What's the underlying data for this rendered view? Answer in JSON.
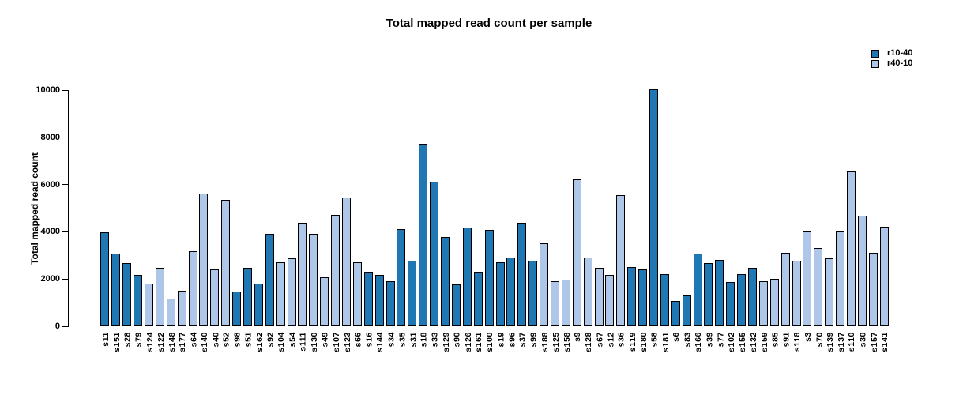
{
  "title": "Total mapped read count per sample",
  "y_axis": {
    "label": "Total mapped read count",
    "ticks": [
      0,
      2000,
      4000,
      6000,
      8000,
      10000
    ],
    "max": 10000
  },
  "legend": {
    "items": [
      {
        "label": "r10-40",
        "color": "#1F77B4"
      },
      {
        "label": "r40-10",
        "color": "#AEC7E8"
      }
    ],
    "position": "topright"
  },
  "chart_data": {
    "type": "bar",
    "title": "Total mapped read count per sample",
    "xlabel": "",
    "ylabel": "Total mapped read count",
    "ylim": [
      0,
      10000
    ],
    "grid": false,
    "legend_position": "topright",
    "groups": {
      "r10-40": "#1F77B4",
      "r40-10": "#AEC7E8"
    },
    "bars": [
      {
        "sample": "s11",
        "value": 3900,
        "group": "r10-40"
      },
      {
        "sample": "s151",
        "value": 3000,
        "group": "r10-40"
      },
      {
        "sample": "s28",
        "value": 2600,
        "group": "r10-40"
      },
      {
        "sample": "s79",
        "value": 2100,
        "group": "r10-40"
      },
      {
        "sample": "s124",
        "value": 1750,
        "group": "r40-10"
      },
      {
        "sample": "s122",
        "value": 2400,
        "group": "r40-10"
      },
      {
        "sample": "s148",
        "value": 1100,
        "group": "r40-10"
      },
      {
        "sample": "s177",
        "value": 1450,
        "group": "r40-10"
      },
      {
        "sample": "s64",
        "value": 3100,
        "group": "r40-10"
      },
      {
        "sample": "s140",
        "value": 5550,
        "group": "r40-10"
      },
      {
        "sample": "s40",
        "value": 2350,
        "group": "r40-10"
      },
      {
        "sample": "s52",
        "value": 5300,
        "group": "r40-10"
      },
      {
        "sample": "s98",
        "value": 1400,
        "group": "r10-40"
      },
      {
        "sample": "s51",
        "value": 2400,
        "group": "r10-40"
      },
      {
        "sample": "s162",
        "value": 1750,
        "group": "r10-40"
      },
      {
        "sample": "s92",
        "value": 3850,
        "group": "r10-40"
      },
      {
        "sample": "s104",
        "value": 2650,
        "group": "r40-10"
      },
      {
        "sample": "s54",
        "value": 2800,
        "group": "r40-10"
      },
      {
        "sample": "s111",
        "value": 4300,
        "group": "r40-10"
      },
      {
        "sample": "s130",
        "value": 3850,
        "group": "r40-10"
      },
      {
        "sample": "s49",
        "value": 2000,
        "group": "r40-10"
      },
      {
        "sample": "s107",
        "value": 4650,
        "group": "r40-10"
      },
      {
        "sample": "s123",
        "value": 5400,
        "group": "r40-10"
      },
      {
        "sample": "s66",
        "value": 2650,
        "group": "r40-10"
      },
      {
        "sample": "s16",
        "value": 2250,
        "group": "r10-40"
      },
      {
        "sample": "s144",
        "value": 2100,
        "group": "r10-40"
      },
      {
        "sample": "s34",
        "value": 1850,
        "group": "r10-40"
      },
      {
        "sample": "s35",
        "value": 4050,
        "group": "r10-40"
      },
      {
        "sample": "s31",
        "value": 2700,
        "group": "r10-40"
      },
      {
        "sample": "s18",
        "value": 7650,
        "group": "r10-40"
      },
      {
        "sample": "s33",
        "value": 6050,
        "group": "r10-40"
      },
      {
        "sample": "s129",
        "value": 3700,
        "group": "r10-40"
      },
      {
        "sample": "s90",
        "value": 1700,
        "group": "r10-40"
      },
      {
        "sample": "s126",
        "value": 4100,
        "group": "r10-40"
      },
      {
        "sample": "s161",
        "value": 2250,
        "group": "r10-40"
      },
      {
        "sample": "s100",
        "value": 4000,
        "group": "r10-40"
      },
      {
        "sample": "s19",
        "value": 2650,
        "group": "r10-40"
      },
      {
        "sample": "s96",
        "value": 2850,
        "group": "r10-40"
      },
      {
        "sample": "s37",
        "value": 4300,
        "group": "r10-40"
      },
      {
        "sample": "s99",
        "value": 2700,
        "group": "r10-40"
      },
      {
        "sample": "s188",
        "value": 3450,
        "group": "r40-10"
      },
      {
        "sample": "s125",
        "value": 1850,
        "group": "r40-10"
      },
      {
        "sample": "s158",
        "value": 1900,
        "group": "r40-10"
      },
      {
        "sample": "s9",
        "value": 6150,
        "group": "r40-10"
      },
      {
        "sample": "s128",
        "value": 2850,
        "group": "r40-10"
      },
      {
        "sample": "s67",
        "value": 2400,
        "group": "r40-10"
      },
      {
        "sample": "s12",
        "value": 2100,
        "group": "r40-10"
      },
      {
        "sample": "s36",
        "value": 5500,
        "group": "r40-10"
      },
      {
        "sample": "s119",
        "value": 2450,
        "group": "r10-40"
      },
      {
        "sample": "s180",
        "value": 2350,
        "group": "r10-40"
      },
      {
        "sample": "s58",
        "value": 9950,
        "group": "r10-40"
      },
      {
        "sample": "s181",
        "value": 2150,
        "group": "r10-40"
      },
      {
        "sample": "s6",
        "value": 1000,
        "group": "r10-40"
      },
      {
        "sample": "s83",
        "value": 1250,
        "group": "r10-40"
      },
      {
        "sample": "s166",
        "value": 3000,
        "group": "r10-40"
      },
      {
        "sample": "s39",
        "value": 2600,
        "group": "r10-40"
      },
      {
        "sample": "s77",
        "value": 2750,
        "group": "r10-40"
      },
      {
        "sample": "s102",
        "value": 1800,
        "group": "r10-40"
      },
      {
        "sample": "s155",
        "value": 2150,
        "group": "r10-40"
      },
      {
        "sample": "s132",
        "value": 2400,
        "group": "r10-40"
      },
      {
        "sample": "s159",
        "value": 1850,
        "group": "r40-10"
      },
      {
        "sample": "s85",
        "value": 1950,
        "group": "r40-10"
      },
      {
        "sample": "s91",
        "value": 3050,
        "group": "r40-10"
      },
      {
        "sample": "s118",
        "value": 2700,
        "group": "r40-10"
      },
      {
        "sample": "s3",
        "value": 3950,
        "group": "r40-10"
      },
      {
        "sample": "s70",
        "value": 3250,
        "group": "r40-10"
      },
      {
        "sample": "s139",
        "value": 2800,
        "group": "r40-10"
      },
      {
        "sample": "s137",
        "value": 3950,
        "group": "r40-10"
      },
      {
        "sample": "s110",
        "value": 6500,
        "group": "r40-10"
      },
      {
        "sample": "s30",
        "value": 4600,
        "group": "r40-10"
      },
      {
        "sample": "s157",
        "value": 3050,
        "group": "r40-10"
      },
      {
        "sample": "s141",
        "value": 4150,
        "group": "r40-10"
      }
    ]
  }
}
